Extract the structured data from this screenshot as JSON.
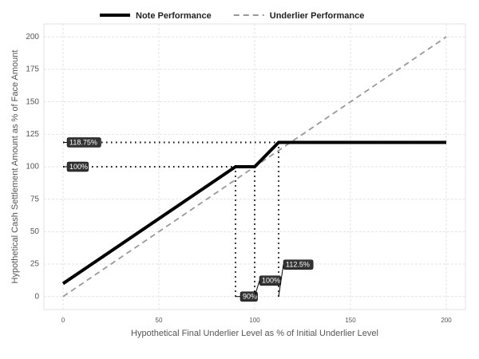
{
  "chart_data": {
    "type": "line",
    "x_label": "Hypothetical Final Underlier Level as % of Initial Underlier Level",
    "y_label": "Hypothetical Cash Settlement Amount as % of Face Amount",
    "xlim": [
      -10,
      210
    ],
    "ylim": [
      -10,
      210
    ],
    "xticks": [
      0,
      50,
      100,
      150,
      200
    ],
    "yticks": [
      0,
      25,
      50,
      75,
      100,
      125,
      150,
      175,
      200
    ],
    "grid": true,
    "legend": "top",
    "series": [
      {
        "name": "Note Performance",
        "color": "#000000",
        "dash": "solid",
        "x": [
          0,
          90,
          100,
          112.5,
          200
        ],
        "values": [
          10,
          100,
          100,
          118.75,
          118.75
        ]
      },
      {
        "name": "Underlier Performance",
        "color": "#999999",
        "dash": "dashed",
        "x": [
          0,
          200
        ],
        "values": [
          0,
          200
        ]
      }
    ],
    "reference_lines": [
      {
        "x": [
          0,
          112.5
        ],
        "y": [
          118.75,
          118.75
        ]
      },
      {
        "x": [
          0,
          100
        ],
        "y": [
          100,
          100
        ]
      },
      {
        "x": [
          90,
          90
        ],
        "y": [
          0,
          100
        ]
      },
      {
        "x": [
          100,
          100
        ],
        "y": [
          0,
          100
        ]
      },
      {
        "x": [
          112.5,
          112.5
        ],
        "y": [
          0,
          118.75
        ]
      }
    ],
    "annotations": [
      {
        "text": "118.75%",
        "x": 0,
        "y": 118.75
      },
      {
        "text": "100%",
        "x": 0,
        "y": 100
      },
      {
        "text": "90%",
        "x": 90,
        "y": 0
      },
      {
        "text": "100%",
        "x": 100,
        "y": 0
      },
      {
        "text": "112.5%",
        "x": 112.5,
        "y": 0
      }
    ]
  }
}
